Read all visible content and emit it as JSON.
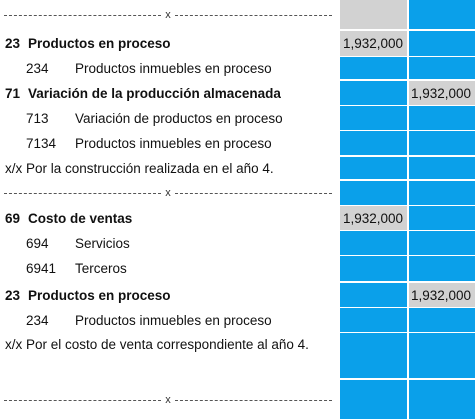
{
  "separator_mark": "x",
  "rows": [
    {
      "kind": "sep"
    },
    {
      "kind": "acct",
      "code": "23",
      "name": "Productos en proceso",
      "debit": "1,932,000",
      "credit": ""
    },
    {
      "kind": "sub",
      "code": "234",
      "name": "Productos inmuebles en proceso"
    },
    {
      "kind": "acct",
      "code": "71",
      "name": "Variación de la producción almacenada",
      "debit": "",
      "credit": "1,932,000"
    },
    {
      "kind": "sub",
      "code": "713",
      "name": "Variación de productos en proceso"
    },
    {
      "kind": "sub",
      "code": "7134",
      "name": "Productos inmuebles en proceso"
    },
    {
      "kind": "gloss",
      "text": "x/x Por la construcción realizada en el año 4."
    },
    {
      "kind": "sep"
    },
    {
      "kind": "acct",
      "code": "69",
      "name": "Costo de ventas",
      "debit": "1,932,000",
      "credit": ""
    },
    {
      "kind": "sub",
      "code": "694",
      "name": "Servicios"
    },
    {
      "kind": "sub",
      "code": "6941",
      "name": "Terceros"
    },
    {
      "kind": "acct",
      "code": "23",
      "name": "Productos en proceso",
      "debit": "",
      "credit": "1,932,000"
    },
    {
      "kind": "sub",
      "code": "234",
      "name": "Productos inmuebles en proceso"
    },
    {
      "kind": "gloss2",
      "text": "x/x Por el costo de venta correspondiente al año 4."
    },
    {
      "kind": "sep"
    }
  ],
  "colors": {
    "column_blue": "#0aa0ea",
    "column_grey": "#d2d2d2"
  }
}
